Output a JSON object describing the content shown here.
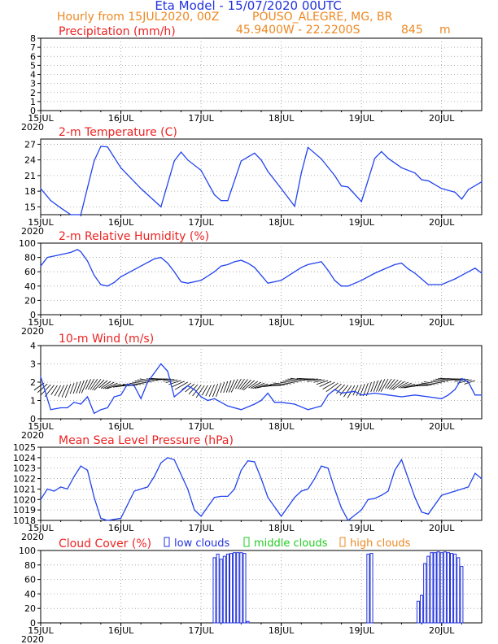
{
  "header": {
    "title": "Eta Model - 15/07/2020 00UTC",
    "subtitle_left": "Hourly from 15JUL2020, 00Z",
    "location": "POUSO_ALEGRE, MG, BR",
    "coords": "45.9400W - 22.2200S",
    "elevation": "845",
    "elevation_unit": "m"
  },
  "colors": {
    "title": "#2233dd",
    "subtitle": "#ee8822",
    "panel_title": "#ee2222",
    "line": "#2244ee",
    "grid": "#999999",
    "low_clouds": "#2233dd",
    "middle_clouds": "#22cc22",
    "high_clouds": "#ee8822"
  },
  "chart_data": [
    {
      "type": "bar",
      "id": "precip",
      "title": "Precipitation (mm/h)",
      "ylim": [
        0,
        8
      ],
      "yticks": [
        0,
        1,
        2,
        3,
        4,
        5,
        6,
        7,
        8
      ],
      "x": [
        0,
        132
      ],
      "values": [
        0,
        0
      ]
    },
    {
      "type": "line",
      "id": "temp",
      "title": "2-m Temperature (C)",
      "ylim": [
        13.5,
        28
      ],
      "yticks": [
        15,
        18,
        21,
        24,
        27
      ],
      "x": [
        0,
        3,
        6,
        9,
        12,
        16,
        18,
        20,
        24,
        30,
        36,
        40,
        42,
        44,
        48,
        52,
        54,
        56,
        60,
        64,
        66,
        68,
        72,
        76,
        78,
        80,
        84,
        88,
        90,
        92,
        96,
        100,
        102,
        104,
        108,
        112,
        114,
        116,
        120,
        124,
        126,
        128,
        132
      ],
      "values": [
        18.5,
        16.2,
        14.8,
        13.5,
        13.2,
        23.8,
        26.6,
        26.5,
        22.5,
        18.5,
        15.0,
        23.8,
        25.5,
        24.0,
        22.0,
        17.3,
        16.2,
        16.2,
        23.8,
        25.3,
        24.0,
        21.8,
        18.5,
        15.1,
        21.5,
        26.4,
        24.2,
        21.0,
        19.0,
        18.8,
        16.0,
        24.3,
        25.6,
        24.3,
        22.5,
        21.5,
        20.2,
        20.0,
        18.5,
        17.8,
        16.5,
        18.3,
        19.8
      ]
    },
    {
      "type": "line",
      "id": "rh",
      "title": "2-m Relative Humidity (%)",
      "ylim": [
        0,
        100
      ],
      "yticks": [
        0,
        20,
        40,
        60,
        80,
        100
      ],
      "x": [
        0,
        2,
        6,
        9,
        11,
        12,
        14,
        16,
        18,
        20,
        22,
        24,
        30,
        34,
        36,
        38,
        40,
        42,
        44,
        48,
        52,
        54,
        56,
        58,
        60,
        62,
        64,
        66,
        68,
        72,
        76,
        78,
        80,
        82,
        84,
        86,
        88,
        90,
        92,
        96,
        100,
        102,
        104,
        106,
        108,
        110,
        112,
        114,
        116,
        120,
        124,
        126,
        128,
        130,
        132
      ],
      "values": [
        68,
        80,
        84,
        87,
        91,
        88,
        75,
        55,
        42,
        40,
        45,
        53,
        68,
        78,
        80,
        72,
        60,
        46,
        44,
        48,
        60,
        68,
        70,
        74,
        76,
        72,
        66,
        55,
        44,
        48,
        60,
        66,
        70,
        72,
        74,
        62,
        48,
        40,
        40,
        48,
        58,
        62,
        66,
        70,
        72,
        64,
        58,
        50,
        42,
        42,
        50,
        55,
        60,
        65,
        58
      ]
    },
    {
      "type": "line",
      "id": "wind",
      "title": "10-m Wind (m/s)",
      "ylim": [
        0,
        4
      ],
      "yticks": [
        0,
        1,
        2,
        3,
        4
      ],
      "x": [
        0,
        3,
        6,
        8,
        10,
        12,
        14,
        16,
        18,
        20,
        22,
        24,
        26,
        28,
        30,
        32,
        36,
        38,
        40,
        42,
        44,
        46,
        48,
        50,
        52,
        56,
        60,
        64,
        66,
        68,
        70,
        72,
        76,
        80,
        84,
        86,
        88,
        90,
        94,
        96,
        100,
        104,
        108,
        112,
        116,
        120,
        122,
        124,
        126,
        128,
        130,
        132
      ],
      "values": [
        2.3,
        0.5,
        0.6,
        0.6,
        0.9,
        0.8,
        1.2,
        0.3,
        0.5,
        0.6,
        1.2,
        1.3,
        1.9,
        1.8,
        1.1,
        2.0,
        3.0,
        2.6,
        1.2,
        1.5,
        1.8,
        1.6,
        1.2,
        1.0,
        1.1,
        0.7,
        0.5,
        0.8,
        1.0,
        1.4,
        0.9,
        0.9,
        0.8,
        0.5,
        0.7,
        1.3,
        1.6,
        1.4,
        1.5,
        1.3,
        1.4,
        1.3,
        1.2,
        1.3,
        1.2,
        1.1,
        1.3,
        1.6,
        2.2,
        2.0,
        1.3,
        1.3
      ]
    },
    {
      "type": "line",
      "id": "pres",
      "title": "Mean Sea Level Pressure (hPa)",
      "ylim": [
        1018,
        1025
      ],
      "yticks": [
        1018,
        1019,
        1020,
        1021,
        1022,
        1023,
        1024,
        1025
      ],
      "x": [
        0,
        2,
        4,
        6,
        8,
        10,
        12,
        14,
        16,
        18,
        20,
        24,
        28,
        30,
        32,
        34,
        36,
        38,
        40,
        44,
        46,
        48,
        52,
        54,
        56,
        58,
        60,
        62,
        64,
        66,
        68,
        72,
        76,
        78,
        80,
        82,
        84,
        86,
        88,
        90,
        92,
        96,
        98,
        100,
        102,
        104,
        106,
        108,
        112,
        114,
        116,
        120,
        124,
        128,
        130,
        132
      ],
      "values": [
        1020.0,
        1021.0,
        1020.8,
        1021.2,
        1021.0,
        1022.2,
        1023.2,
        1022.8,
        1020.2,
        1018.2,
        1018.0,
        1018.2,
        1020.8,
        1021.0,
        1021.2,
        1022.2,
        1023.5,
        1024.0,
        1023.8,
        1021.0,
        1019.0,
        1018.4,
        1020.2,
        1020.3,
        1020.3,
        1021.0,
        1022.8,
        1023.7,
        1023.6,
        1022.0,
        1020.2,
        1018.4,
        1020.2,
        1020.8,
        1021.0,
        1022.0,
        1023.2,
        1023.0,
        1021.0,
        1019.2,
        1018.0,
        1019.0,
        1020.0,
        1020.1,
        1020.4,
        1020.8,
        1022.8,
        1023.8,
        1020.2,
        1018.8,
        1018.6,
        1020.4,
        1020.8,
        1021.2,
        1022.5,
        1022.0
      ]
    },
    {
      "type": "bar",
      "id": "cloud",
      "title": "Cloud Cover (%)",
      "legend": [
        "low clouds",
        "middle clouds",
        "high clouds"
      ],
      "ylim": [
        0,
        100
      ],
      "yticks": [
        0,
        20,
        40,
        60,
        80,
        100
      ],
      "x": [
        52,
        53,
        54,
        55,
        56,
        57,
        58,
        59,
        60,
        61,
        62,
        98,
        99,
        113,
        114,
        115,
        116,
        117,
        118,
        119,
        120,
        121,
        122,
        123,
        124,
        125,
        126
      ],
      "values": [
        90,
        95,
        88,
        92,
        95,
        96,
        97,
        97,
        97,
        96,
        2,
        95,
        96,
        30,
        38,
        82,
        92,
        97,
        97,
        98,
        97,
        98,
        97,
        96,
        95,
        90,
        78
      ]
    }
  ],
  "x_axis": {
    "ticks": [
      {
        "hour": 0,
        "label": "15JUL"
      },
      {
        "hour": 24,
        "label": "16JUL"
      },
      {
        "hour": 48,
        "label": "17JUL"
      },
      {
        "hour": 72,
        "label": "18JUL"
      },
      {
        "hour": 96,
        "label": "19JUL"
      },
      {
        "hour": 120,
        "label": "20JUL"
      }
    ],
    "year_label": "2020"
  }
}
